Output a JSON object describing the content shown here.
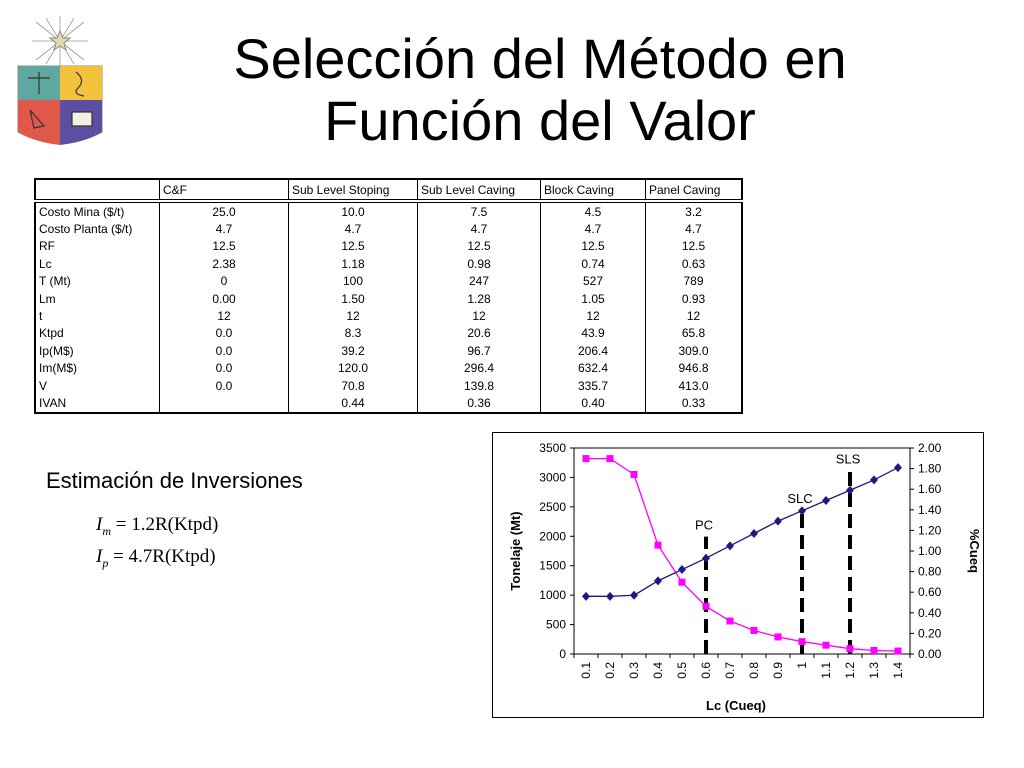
{
  "title_line1": "Selección del Método en",
  "title_line2": "Función del Valor",
  "table": {
    "headers": [
      "",
      "C&F",
      "Sub Level Stoping",
      "Sub Level Caving",
      "Block Caving",
      "Panel Caving"
    ],
    "rows": [
      {
        "label": "Costo Mina ($/t)",
        "cells": [
          "25.0",
          "10.0",
          "7.5",
          "4.5",
          "3.2"
        ]
      },
      {
        "label": "Costo Planta ($/t)",
        "cells": [
          "4.7",
          "4.7",
          "4.7",
          "4.7",
          "4.7"
        ]
      },
      {
        "label": "RF",
        "cells": [
          "12.5",
          "12.5",
          "12.5",
          "12.5",
          "12.5"
        ]
      },
      {
        "label": "Lc",
        "cells": [
          "2.38",
          "1.18",
          "0.98",
          "0.74",
          "0.63"
        ]
      },
      {
        "label": "T (Mt)",
        "cells": [
          "0",
          "100",
          "247",
          "527",
          "789"
        ]
      },
      {
        "label": "Lm",
        "cells": [
          "0.00",
          "1.50",
          "1.28",
          "1.05",
          "0.93"
        ]
      },
      {
        "label": "t",
        "cells": [
          "12",
          "12",
          "12",
          "12",
          "12"
        ]
      },
      {
        "label": "Ktpd",
        "cells": [
          "0.0",
          "8.3",
          "20.6",
          "43.9",
          "65.8"
        ]
      },
      {
        "label": "Ip(M$)",
        "cells": [
          "0.0",
          "39.2",
          "96.7",
          "206.4",
          "309.0"
        ]
      },
      {
        "label": "Im(M$)",
        "cells": [
          "0.0",
          "120.0",
          "296.4",
          "632.4",
          "946.8"
        ]
      },
      {
        "label": "V",
        "cells": [
          "0.0",
          "70.8",
          "139.8",
          "335.7",
          "413.0"
        ]
      },
      {
        "label": "IVAN",
        "cells": [
          "",
          "0.44",
          "0.36",
          "0.40",
          "0.33"
        ]
      }
    ]
  },
  "subtitle": "Estimación de Inversiones",
  "formulas": [
    {
      "var": "I",
      "sub": "m",
      "eq": "= 1.2R(Ktpd)"
    },
    {
      "var": "I",
      "sub": "p",
      "eq": "= 4.7R(Ktpd)"
    }
  ],
  "chart_data": {
    "type": "line",
    "xlabel": "Lc (Cueq)",
    "ylabel": "Tonelaje (Mt)",
    "y2label": "%Cueq",
    "categories": [
      "0.1",
      "0.2",
      "0.3",
      "0.4",
      "0.5",
      "0.6",
      "0.7",
      "0.8",
      "0.9",
      "1",
      "1.1",
      "1.2",
      "1.3",
      "1.4"
    ],
    "ylim": [
      0,
      3500
    ],
    "yticks": [
      "0",
      "500",
      "1000",
      "1500",
      "2000",
      "2500",
      "3000",
      "3500"
    ],
    "y2lim": [
      0,
      2.0
    ],
    "y2ticks": [
      "0.00",
      "0.20",
      "0.40",
      "0.60",
      "0.80",
      "1.00",
      "1.20",
      "1.40",
      "1.60",
      "1.80",
      "2.00"
    ],
    "series": [
      {
        "axis": "left",
        "color": "#ff00ff",
        "marker": "square",
        "values": [
          3320,
          3320,
          3050,
          1850,
          1220,
          810,
          560,
          400,
          290,
          210,
          150,
          90,
          60,
          50
        ]
      },
      {
        "axis": "right",
        "color": "#1a1a80",
        "marker": "diamond",
        "values": [
          0.56,
          0.56,
          0.57,
          0.71,
          0.82,
          0.93,
          1.05,
          1.17,
          1.29,
          1.39,
          1.49,
          1.59,
          1.69,
          1.81
        ]
      }
    ],
    "markers": [
      {
        "label": "PC",
        "x": "0.6"
      },
      {
        "label": "SLC",
        "x": "1"
      },
      {
        "label": "SLS",
        "x": "1.2"
      }
    ],
    "grid": false
  }
}
